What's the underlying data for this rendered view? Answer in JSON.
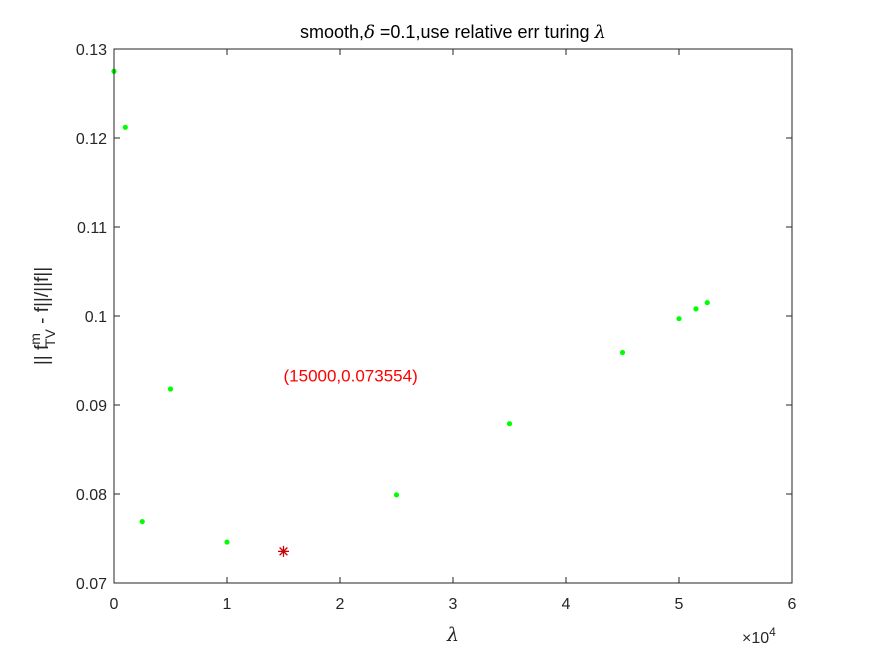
{
  "chart_data": {
    "type": "scatter",
    "title": {
      "prefix": "smooth,",
      "delta_symbol": "δ",
      "middle": " =0.1,use relative err turing ",
      "lambda_symbol": "λ"
    },
    "xlabel": "λ",
    "ylabel": {
      "part1": "|| f",
      "sup": "m",
      "sub": "TV",
      "part2": " - f||/||f||"
    },
    "x_exponent_label": {
      "prefix": "×10",
      "power": "4"
    },
    "xlim": [
      0,
      60000
    ],
    "ylim": [
      0.07,
      0.13
    ],
    "x_scale": 10000,
    "x_ticks": [
      0,
      10000,
      20000,
      30000,
      40000,
      50000,
      60000
    ],
    "x_tick_labels": [
      "0",
      "1",
      "2",
      "3",
      "4",
      "5",
      "6"
    ],
    "y_ticks": [
      0.07,
      0.08,
      0.09,
      0.1,
      0.11,
      0.12,
      0.13
    ],
    "y_tick_labels": [
      "0.07",
      "0.08",
      "0.09",
      "0.1",
      "0.11",
      "0.12",
      "0.13"
    ],
    "grid": false,
    "series": [
      {
        "marker": "dot",
        "color": "#00ff00",
        "points": [
          {
            "x": 0,
            "y": 0.1275
          },
          {
            "x": 1000,
            "y": 0.1212
          },
          {
            "x": 2500,
            "y": 0.0769
          },
          {
            "x": 5000,
            "y": 0.0918
          },
          {
            "x": 10000,
            "y": 0.0746
          },
          {
            "x": 25000,
            "y": 0.0799
          },
          {
            "x": 35000,
            "y": 0.0879
          },
          {
            "x": 45000,
            "y": 0.0959
          },
          {
            "x": 50000,
            "y": 0.0997
          },
          {
            "x": 51500,
            "y": 0.1008
          },
          {
            "x": 52500,
            "y": 0.1015
          }
        ]
      }
    ],
    "highlight": {
      "x": 15000,
      "y": 0.073554,
      "marker": "asterisk",
      "color": "#cc0000"
    },
    "annotation": {
      "text": "(15000,0.073554)",
      "x": 15000,
      "y": 0.0933,
      "color": "#ff0000"
    }
  }
}
